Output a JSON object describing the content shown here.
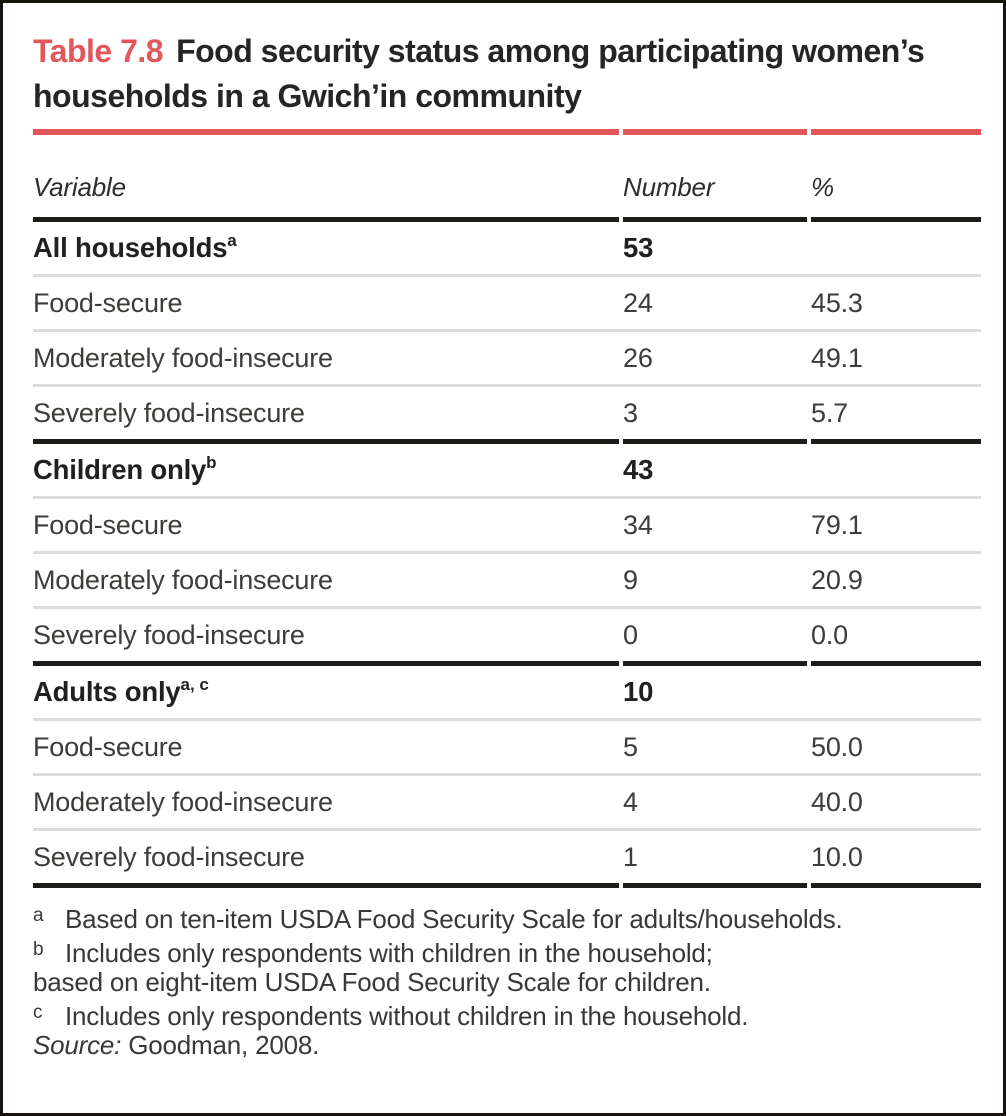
{
  "title": {
    "label": "Table 7.8",
    "text": "Food security status among participating women’s households in a Gwich’in community"
  },
  "columns": [
    "Variable",
    "Number",
    "%"
  ],
  "sections": [
    {
      "header": {
        "label": "All households",
        "superscript": "a",
        "number": "53",
        "percent": ""
      },
      "rows": [
        {
          "label": "Food-secure",
          "number": "24",
          "percent": "45.3"
        },
        {
          "label": "Moderately food-insecure",
          "number": "26",
          "percent": "49.1"
        },
        {
          "label": "Severely food-insecure",
          "number": "3",
          "percent": "5.7"
        }
      ]
    },
    {
      "header": {
        "label": "Children only",
        "superscript": "b",
        "number": "43",
        "percent": ""
      },
      "rows": [
        {
          "label": "Food-secure",
          "number": "34",
          "percent": "79.1"
        },
        {
          "label": "Moderately food-insecure",
          "number": "9",
          "percent": "20.9"
        },
        {
          "label": "Severely food-insecure",
          "number": "0",
          "percent": "0.0"
        }
      ]
    },
    {
      "header": {
        "label": "Adults only",
        "superscript": "a, c",
        "number": "10",
        "percent": ""
      },
      "rows": [
        {
          "label": "Food-secure",
          "number": "5",
          "percent": "50.0"
        },
        {
          "label": "Moderately food-insecure",
          "number": "4",
          "percent": "40.0"
        },
        {
          "label": "Severely food-insecure",
          "number": "1",
          "percent": "10.0"
        }
      ]
    }
  ],
  "footnotes": [
    {
      "marker": "a",
      "text": "Based on ten-item USDA Food Security Scale for adults/households."
    },
    {
      "marker": "b",
      "text": "Includes only respondents with children in the household;"
    },
    {
      "marker": "",
      "text": "based on eight-item USDA Food Security Scale for children."
    },
    {
      "marker": "c",
      "text": "Includes only respondents without children in the household."
    }
  ],
  "source": {
    "label": "Source:",
    "text": "Goodman, 2008."
  },
  "colors": {
    "accent": "#e2575b",
    "heading_text": "#262523",
    "body_text": "#3d3c39",
    "rule_dark": "#1d1c19",
    "rule_light": "#dcdcda"
  }
}
